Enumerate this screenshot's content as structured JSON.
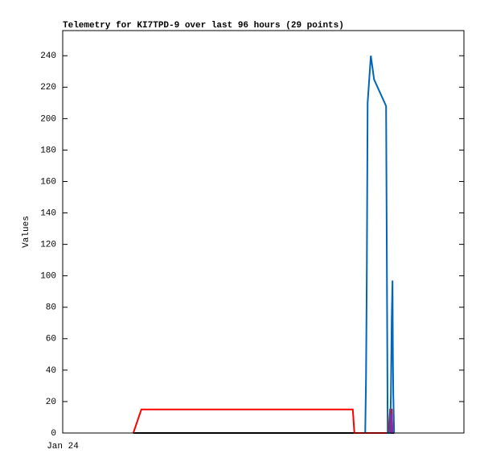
{
  "chart_data": {
    "type": "line",
    "title": "Telemetry for KI7TPD-9 over last 96 hours (29 points)",
    "y_label": "Values",
    "xlim": [
      0,
      100
    ],
    "xticks": [
      {
        "value": 0,
        "label": "Jan 24"
      }
    ],
    "ylim": [
      0,
      256
    ],
    "yticks": [
      0,
      20,
      40,
      60,
      80,
      100,
      120,
      140,
      160,
      180,
      200,
      220,
      240
    ],
    "series": [
      {
        "color": "#000000",
        "x": [
          17.6,
          82.6
        ],
        "values": [
          0,
          0
        ]
      },
      {
        "color": "#ff0000",
        "x": [
          17.6,
          19.6,
          20.0,
          72.3,
          72.7,
          81.2,
          81.6,
          82.0,
          82.2
        ],
        "values": [
          0,
          15,
          15,
          15,
          0,
          0,
          15,
          15,
          0
        ]
      },
      {
        "color": "#0066bb",
        "x": [
          75.4,
          75.6,
          75.8,
          76.0,
          76.8,
          77.6,
          80.6,
          80.8,
          81.0,
          81.6,
          81.8,
          82.0,
          82.2,
          82.3,
          82.4,
          82.6
        ],
        "values": [
          0,
          35,
          104,
          210,
          240,
          225,
          208,
          104,
          0,
          0,
          24,
          72,
          97,
          48,
          24,
          0
        ]
      },
      {
        "color": "#a020a0",
        "x": [
          81.8,
          82.0,
          82.2
        ],
        "values": [
          0,
          12,
          0
        ]
      }
    ]
  }
}
